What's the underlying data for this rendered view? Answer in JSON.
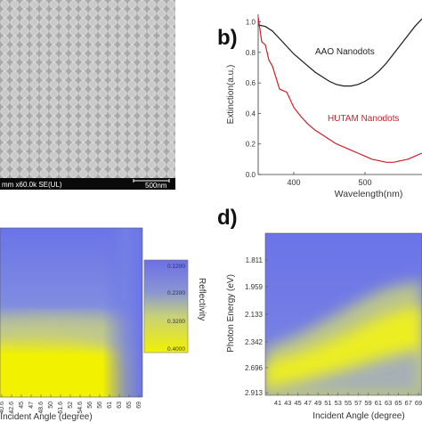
{
  "panels": {
    "a": {
      "sem_info": "mm x60.0k SE(UL)",
      "scale_label": "500nm"
    },
    "b": {
      "letter": "b)"
    },
    "c": {},
    "d": {
      "letter": "d)"
    }
  },
  "colors": {
    "black_series": "#1a1a1a",
    "red_series": "#cc1f2a",
    "map_high": "#6b74e8",
    "map_mid": "#b9c29a",
    "map_low": "#f2f200"
  },
  "chart_data": [
    {
      "type": "line",
      "panel": "b",
      "xlabel": "Wavelength(nm)",
      "ylabel": "Extinction(a.u.)",
      "xlim": [
        350,
        580
      ],
      "ylim": [
        0,
        1.05
      ],
      "x_ticks": [
        400,
        500
      ],
      "y_ticks": [
        0.0,
        0.2,
        0.4,
        0.6,
        0.8,
        1.0
      ],
      "x_tick_labels": [
        "400",
        "500"
      ],
      "y_tick_labels": [
        "0.0",
        "0.2",
        "0.4",
        "0.6",
        "0.8",
        "1.0"
      ],
      "series": [
        {
          "name": "AAO Nanodots",
          "x": [
            350,
            360,
            370,
            380,
            390,
            400,
            410,
            420,
            430,
            440,
            450,
            460,
            470,
            480,
            490,
            500,
            510,
            520,
            530,
            540,
            550,
            560,
            570,
            580
          ],
          "y": [
            0.98,
            0.97,
            0.94,
            0.89,
            0.84,
            0.79,
            0.75,
            0.71,
            0.67,
            0.64,
            0.61,
            0.59,
            0.58,
            0.58,
            0.59,
            0.61,
            0.64,
            0.68,
            0.73,
            0.79,
            0.85,
            0.91,
            0.97,
            1.02
          ]
        },
        {
          "name": "HUTAM Nanodots",
          "x": [
            350,
            355,
            360,
            365,
            370,
            380,
            390,
            400,
            410,
            420,
            430,
            440,
            450,
            460,
            470,
            480,
            490,
            500,
            510,
            520,
            530,
            540,
            550,
            560,
            570,
            580
          ],
          "y": [
            1.0,
            0.9,
            0.82,
            0.78,
            0.68,
            0.59,
            0.51,
            0.44,
            0.38,
            0.33,
            0.29,
            0.26,
            0.23,
            0.2,
            0.18,
            0.16,
            0.14,
            0.12,
            0.1,
            0.09,
            0.08,
            0.08,
            0.09,
            0.1,
            0.12,
            0.14
          ]
        }
      ]
    },
    {
      "type": "heatmap",
      "panel": "c",
      "xlabel": "Incident Angle (degree)",
      "x_tick_labels": [
        "40.6",
        "42.6",
        "45",
        "47",
        "48.6",
        "50",
        "51.6",
        "52",
        "54.6",
        "56",
        "56",
        "61",
        "63",
        "65",
        "69"
      ],
      "colorbar": {
        "label": "Reflectivity",
        "ticks": [
          "0.1200",
          "0.2200",
          "0.3200",
          "0.4000"
        ]
      }
    },
    {
      "type": "heatmap",
      "panel": "d",
      "xlabel": "Incident Angle (degree)",
      "ylabel": "Photon Energy (eV)",
      "y_tick_labels": [
        "1.811",
        "1.959",
        "2.133",
        "2.342",
        "2.696",
        "2.913"
      ],
      "x_tick_labels": [
        "41",
        "43",
        "45",
        "47",
        "49",
        "51",
        "53",
        "55",
        "57",
        "59",
        "61",
        "63",
        "65",
        "67",
        "69"
      ]
    }
  ]
}
